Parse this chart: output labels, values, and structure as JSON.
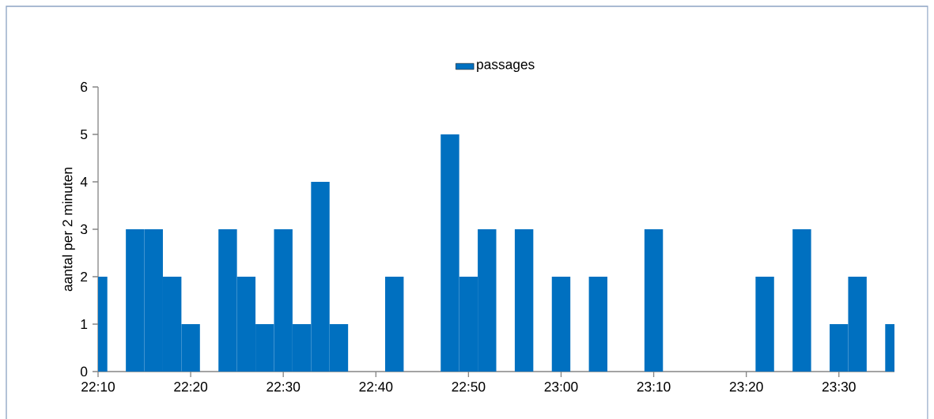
{
  "chart_data": {
    "type": "bar",
    "x": [
      22.16667,
      22.2,
      22.23333,
      22.26667,
      22.3,
      22.33333,
      22.36667,
      22.4,
      22.43333,
      22.46667,
      22.5,
      22.53333,
      22.56667,
      22.6,
      22.63333,
      22.66667,
      22.7,
      22.73333,
      22.76667,
      22.8,
      22.83333,
      22.86667,
      22.9,
      22.93333,
      22.96667,
      23,
      23.03333,
      23.06667,
      23.1,
      23.13333,
      23.16667,
      23.2,
      23.23333,
      23.26667,
      23.3,
      23.33333,
      23.36667,
      23.4,
      23.43333,
      23.46667,
      23.5,
      23.53333,
      23.56667,
      23.6
    ],
    "series": [
      {
        "name": "passages",
        "color": "#0070c0",
        "values": [
          2,
          0,
          3,
          3,
          2,
          1,
          0,
          3,
          2,
          1,
          3,
          1,
          4,
          1,
          0,
          0,
          2,
          0,
          0,
          5,
          2,
          3,
          0,
          3,
          0,
          2,
          0,
          2,
          0,
          0,
          3,
          0,
          0,
          0,
          0,
          0,
          2,
          0,
          3,
          0,
          1,
          2,
          0,
          1
        ]
      }
    ],
    "ylabel": "aantal per 2 minuten",
    "xlim": [
      22.16667,
      23.6
    ],
    "xticks": [
      {
        "value": 22.16667,
        "label": "22:10"
      },
      {
        "value": 22.33333,
        "label": "22:20"
      },
      {
        "value": 22.5,
        "label": "22:30"
      },
      {
        "value": 22.66667,
        "label": "22:40"
      },
      {
        "value": 22.83333,
        "label": "22:50"
      },
      {
        "value": 23,
        "label": "23:00"
      },
      {
        "value": 23.16667,
        "label": "23:10"
      },
      {
        "value": 23.33333,
        "label": "23:20"
      },
      {
        "value": 23.5,
        "label": "23:30"
      }
    ],
    "ylim": [
      0,
      6
    ],
    "yticks": [
      0,
      1,
      2,
      3,
      4,
      5,
      6
    ],
    "legend": "top",
    "grid": false
  }
}
